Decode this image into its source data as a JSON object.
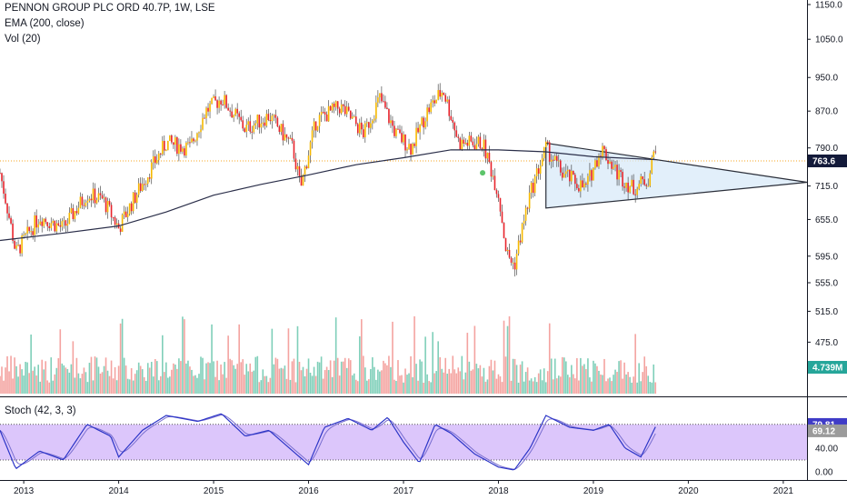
{
  "legend": {
    "title": "PENNON GROUP PLC ORD 40.7P, 1W, LSE",
    "ema": "EMA (200, close)",
    "vol": "Vol (20)"
  },
  "stoch_label": "Stoch (42, 3, 3)",
  "colors": {
    "up": "#f5b800",
    "down": "#e8242c",
    "ema": "#2a2e49",
    "vol_up": "#7fcfb9",
    "vol_down": "#f4a3a0",
    "stoch_k": "#2c35c7",
    "stoch_d": "#7a6fd0",
    "stoch_band": "#dcc6fb",
    "triangle_fill": "#d8eaf8",
    "last_price_line": "#f5a623",
    "price_badge": "#131a3a",
    "vol_badge": "#26a69a",
    "stoch_k_badge": "#3f3bc7",
    "stoch_d_badge": "#9b9b9b"
  },
  "chart_data": {
    "type": "candlestick",
    "price_axis": {
      "ticks": [
        "1150.0",
        "1050.0",
        "950.0",
        "870.0",
        "790.0",
        "715.0",
        "655.0",
        "595.0",
        "555.0",
        "515.0",
        "475.0"
      ],
      "scale": "log"
    },
    "stoch_axis": {
      "ticks": [
        "40.00",
        "0.00"
      ]
    },
    "time_axis": {
      "ticks": [
        "2013",
        "2014",
        "2015",
        "2016",
        "2017",
        "2018",
        "2019",
        "2020",
        "2021"
      ],
      "range": [
        "2012-10",
        "2021-04"
      ]
    },
    "last_price": "763.6",
    "last_volume": "4.739M",
    "stoch_k_last": "79.81",
    "stoch_d_last": "69.12",
    "price_series": [
      {
        "date": "2012-10",
        "close": 740
      },
      {
        "date": "2012-12",
        "close": 600
      },
      {
        "date": "2013-03",
        "close": 660
      },
      {
        "date": "2013-06",
        "close": 640
      },
      {
        "date": "2013-09",
        "close": 700
      },
      {
        "date": "2013-11",
        "close": 690
      },
      {
        "date": "2014-01",
        "close": 640
      },
      {
        "date": "2014-04",
        "close": 720
      },
      {
        "date": "2014-07",
        "close": 800
      },
      {
        "date": "2014-10",
        "close": 790
      },
      {
        "date": "2014-12",
        "close": 870
      },
      {
        "date": "2015-02",
        "close": 900
      },
      {
        "date": "2015-05",
        "close": 830
      },
      {
        "date": "2015-08",
        "close": 860
      },
      {
        "date": "2015-11",
        "close": 790
      },
      {
        "date": "2015-12",
        "close": 710
      },
      {
        "date": "2016-02",
        "close": 850
      },
      {
        "date": "2016-05",
        "close": 880
      },
      {
        "date": "2016-08",
        "close": 820
      },
      {
        "date": "2016-10",
        "close": 900
      },
      {
        "date": "2016-12",
        "close": 820
      },
      {
        "date": "2017-02",
        "close": 790
      },
      {
        "date": "2017-04",
        "close": 870
      },
      {
        "date": "2017-06",
        "close": 920
      },
      {
        "date": "2017-08",
        "close": 800
      },
      {
        "date": "2017-11",
        "close": 800
      },
      {
        "date": "2018-01",
        "close": 700
      },
      {
        "date": "2018-02",
        "close": 600
      },
      {
        "date": "2018-03",
        "close": 580
      },
      {
        "date": "2018-05",
        "close": 700
      },
      {
        "date": "2018-07",
        "close": 790
      },
      {
        "date": "2018-09",
        "close": 740
      },
      {
        "date": "2018-12",
        "close": 710
      },
      {
        "date": "2019-02",
        "close": 790
      },
      {
        "date": "2019-04",
        "close": 740
      },
      {
        "date": "2019-06",
        "close": 710
      },
      {
        "date": "2019-08",
        "close": 730
      },
      {
        "date": "2019-09",
        "close": 810
      }
    ],
    "ema_series": [
      {
        "date": "2012-10",
        "value": 620
      },
      {
        "date": "2013-06",
        "value": 632
      },
      {
        "date": "2014-01",
        "value": 644
      },
      {
        "date": "2014-07",
        "value": 668
      },
      {
        "date": "2015-01",
        "value": 698
      },
      {
        "date": "2015-07",
        "value": 718
      },
      {
        "date": "2016-01",
        "value": 736
      },
      {
        "date": "2016-07",
        "value": 756
      },
      {
        "date": "2017-01",
        "value": 770
      },
      {
        "date": "2017-07",
        "value": 786
      },
      {
        "date": "2018-01",
        "value": 786
      },
      {
        "date": "2018-07",
        "value": 782
      },
      {
        "date": "2019-01",
        "value": 772
      },
      {
        "date": "2019-09",
        "value": 766
      }
    ],
    "triangle": {
      "upper_start": {
        "date": "2018-07",
        "price": 800
      },
      "lower_start": {
        "date": "2018-07",
        "price": 675
      },
      "apex": {
        "date": "2021-04",
        "price": 722
      }
    },
    "stoch_series": [
      {
        "date": "2012-10",
        "value": 70
      },
      {
        "date": "2012-12",
        "value": 5
      },
      {
        "date": "2013-03",
        "value": 35
      },
      {
        "date": "2013-06",
        "value": 20
      },
      {
        "date": "2013-09",
        "value": 80
      },
      {
        "date": "2013-12",
        "value": 60
      },
      {
        "date": "2014-01",
        "value": 25
      },
      {
        "date": "2014-04",
        "value": 70
      },
      {
        "date": "2014-07",
        "value": 95
      },
      {
        "date": "2014-11",
        "value": 85
      },
      {
        "date": "2015-02",
        "value": 98
      },
      {
        "date": "2015-05",
        "value": 60
      },
      {
        "date": "2015-08",
        "value": 70
      },
      {
        "date": "2015-11",
        "value": 35
      },
      {
        "date": "2016-01",
        "value": 12
      },
      {
        "date": "2016-03",
        "value": 75
      },
      {
        "date": "2016-06",
        "value": 90
      },
      {
        "date": "2016-09",
        "value": 70
      },
      {
        "date": "2016-11",
        "value": 92
      },
      {
        "date": "2017-01",
        "value": 50
      },
      {
        "date": "2017-03",
        "value": 15
      },
      {
        "date": "2017-05",
        "value": 80
      },
      {
        "date": "2017-07",
        "value": 65
      },
      {
        "date": "2017-10",
        "value": 30
      },
      {
        "date": "2018-01",
        "value": 8
      },
      {
        "date": "2018-03",
        "value": 3
      },
      {
        "date": "2018-05",
        "value": 40
      },
      {
        "date": "2018-07",
        "value": 95
      },
      {
        "date": "2018-10",
        "value": 75
      },
      {
        "date": "2019-01",
        "value": 70
      },
      {
        "date": "2019-03",
        "value": 80
      },
      {
        "date": "2019-05",
        "value": 40
      },
      {
        "date": "2019-07",
        "value": 25
      },
      {
        "date": "2019-09",
        "value": 80
      }
    ]
  }
}
